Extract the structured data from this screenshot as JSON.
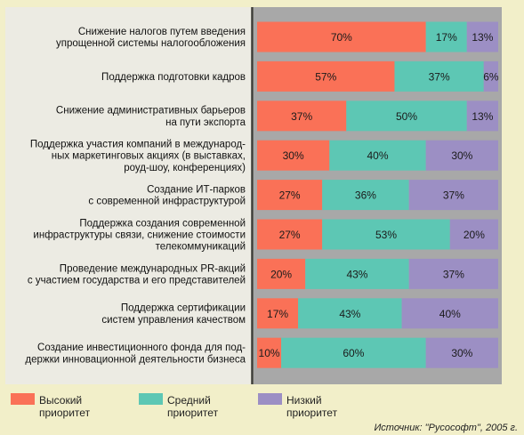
{
  "chart_data": {
    "type": "bar",
    "orientation": "horizontal",
    "stacked": true,
    "categories": [
      [
        "Снижение налогов путем введения",
        "упрощенной системы налогообложения"
      ],
      [
        "Поддержка подготовки кадров"
      ],
      [
        "Снижение административных барьеров",
        "на пути экспорта"
      ],
      [
        "Поддержка участия компаний в международ-",
        "ных маркетинговых акциях (в выставках,",
        "роуд-шоу, конференциях)"
      ],
      [
        "Создание ИТ-парков",
        "с современной инфраструктурой"
      ],
      [
        "Поддержка создания современной",
        "инфраструктуры связи, снижение стоимости",
        "телекоммуникаций"
      ],
      [
        "Проведение международных PR-акций",
        "с участием государства и его представителей"
      ],
      [
        "Поддержка сертификации",
        "систем управления качеством"
      ],
      [
        "Создание инвестиционного фонда для под-",
        "держки инновационной деятельности бизнеса"
      ]
    ],
    "series": [
      {
        "name": "Высокий приоритет",
        "legend_lines": [
          "Высокий",
          "приоритет"
        ],
        "color": "#fa7157",
        "values": [
          70,
          57,
          37,
          30,
          27,
          27,
          20,
          17,
          10
        ]
      },
      {
        "name": "Средний приоритет",
        "legend_lines": [
          "Средний",
          "приоритет"
        ],
        "color": "#5dc7b4",
        "values": [
          17,
          37,
          50,
          40,
          36,
          53,
          43,
          43,
          60
        ]
      },
      {
        "name": "Низкий приоритет",
        "legend_lines": [
          "Низкий",
          "приоритет"
        ],
        "color": "#9c8fc4",
        "values": [
          13,
          6,
          13,
          30,
          37,
          20,
          37,
          40,
          30
        ]
      }
    ],
    "value_suffix": "%",
    "xlim": [
      0,
      100
    ],
    "legend_position": "bottom",
    "source": "Источник: \"Русософт\", 2005 г.",
    "colors": {
      "label_panel": "#ecebe3",
      "bar_panel": "#a8a8a8",
      "page": "#f2efc9",
      "divider": "#3a3a3a"
    }
  }
}
